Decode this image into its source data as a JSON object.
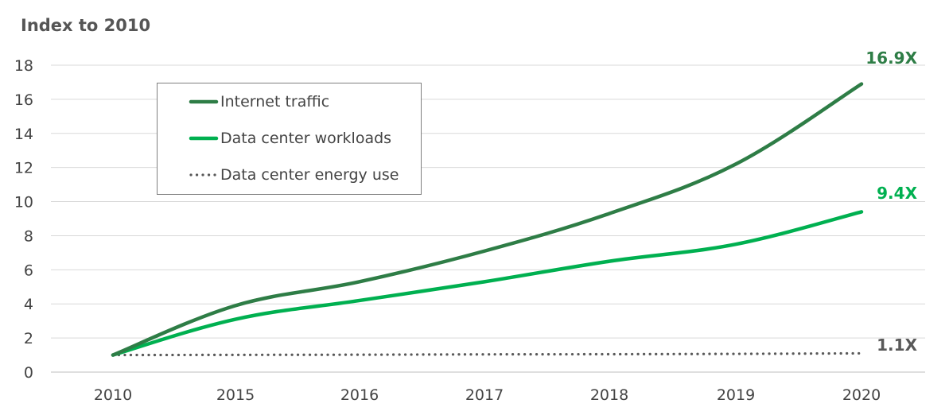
{
  "chart_data": {
    "type": "line",
    "ylabel": "Index to 2010",
    "categories": [
      "2010",
      "2015",
      "2016",
      "2017",
      "2018",
      "2019",
      "2020"
    ],
    "ylim": [
      0,
      18
    ],
    "yticks": [
      0,
      2,
      4,
      6,
      8,
      10,
      12,
      14,
      16,
      18
    ],
    "grid": true,
    "legend_position": "top-left",
    "series": [
      {
        "name": "Internet traffic",
        "values": [
          1.0,
          3.9,
          5.3,
          7.1,
          9.3,
          12.2,
          16.9
        ],
        "color": "#2e7d46",
        "style": "solid",
        "end_label": "16.9X"
      },
      {
        "name": "Data center workloads",
        "values": [
          1.0,
          3.1,
          4.2,
          5.3,
          6.5,
          7.5,
          9.4
        ],
        "color": "#00b050",
        "style": "solid",
        "end_label": "9.4X"
      },
      {
        "name": "Data center energy use",
        "values": [
          1.0,
          1.01,
          1.02,
          1.04,
          1.05,
          1.07,
          1.1
        ],
        "color": "#595959",
        "style": "dotted",
        "end_label": "1.1X"
      }
    ]
  }
}
